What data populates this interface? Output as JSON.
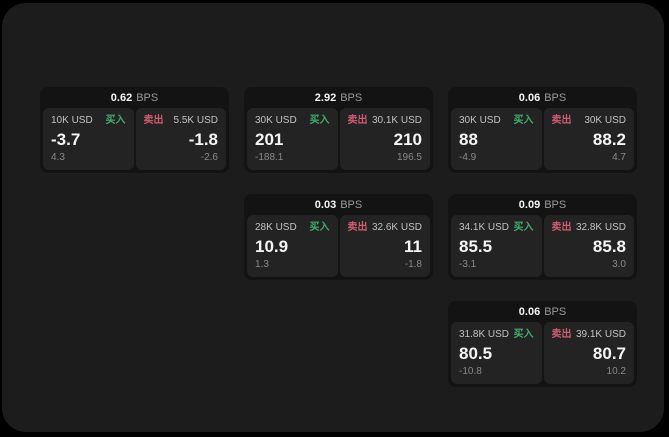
{
  "labels": {
    "bps_suffix": "BPS",
    "buy": "买入",
    "sell": "卖出"
  },
  "colors": {
    "bg_outer": "#000000",
    "surface": "#1c1c1c",
    "card_header_bg": "#131313",
    "panel_bg": "#232323",
    "buy_green": "#3fae6e",
    "sell_red": "#cf5c72",
    "text_primary": "#f5f5f5",
    "text_secondary": "#c2c2c2",
    "text_muted": "#8a8a8a",
    "text_header_unit": "#9a9a9a"
  },
  "cards": [
    {
      "row": 1,
      "col": 1,
      "bps": "0.62",
      "buy": {
        "amount": "10K USD",
        "value": "-3.7",
        "delta": "4.3"
      },
      "sell": {
        "amount": "5.5K USD",
        "value": "-1.8",
        "delta": "-2.6"
      }
    },
    {
      "row": 1,
      "col": 2,
      "bps": "2.92",
      "buy": {
        "amount": "30K USD",
        "value": "201",
        "delta": "-188.1"
      },
      "sell": {
        "amount": "30.1K USD",
        "value": "210",
        "delta": "196.5"
      }
    },
    {
      "row": 1,
      "col": 3,
      "bps": "0.06",
      "buy": {
        "amount": "30K USD",
        "value": "88",
        "delta": "-4.9"
      },
      "sell": {
        "amount": "30K USD",
        "value": "88.2",
        "delta": "4.7"
      }
    },
    {
      "row": 2,
      "col": 2,
      "bps": "0.03",
      "buy": {
        "amount": "28K USD",
        "value": "10.9",
        "delta": "1.3"
      },
      "sell": {
        "amount": "32.6K USD",
        "value": "11",
        "delta": "-1.8"
      }
    },
    {
      "row": 2,
      "col": 3,
      "bps": "0.09",
      "buy": {
        "amount": "34.1K USD",
        "value": "85.5",
        "delta": "-3.1"
      },
      "sell": {
        "amount": "32.8K USD",
        "value": "85.8",
        "delta": "3.0"
      }
    },
    {
      "row": 3,
      "col": 3,
      "bps": "0.06",
      "buy": {
        "amount": "31.8K USD",
        "value": "80.5",
        "delta": "-10.8"
      },
      "sell": {
        "amount": "39.1K USD",
        "value": "80.7",
        "delta": "10.2"
      }
    }
  ]
}
